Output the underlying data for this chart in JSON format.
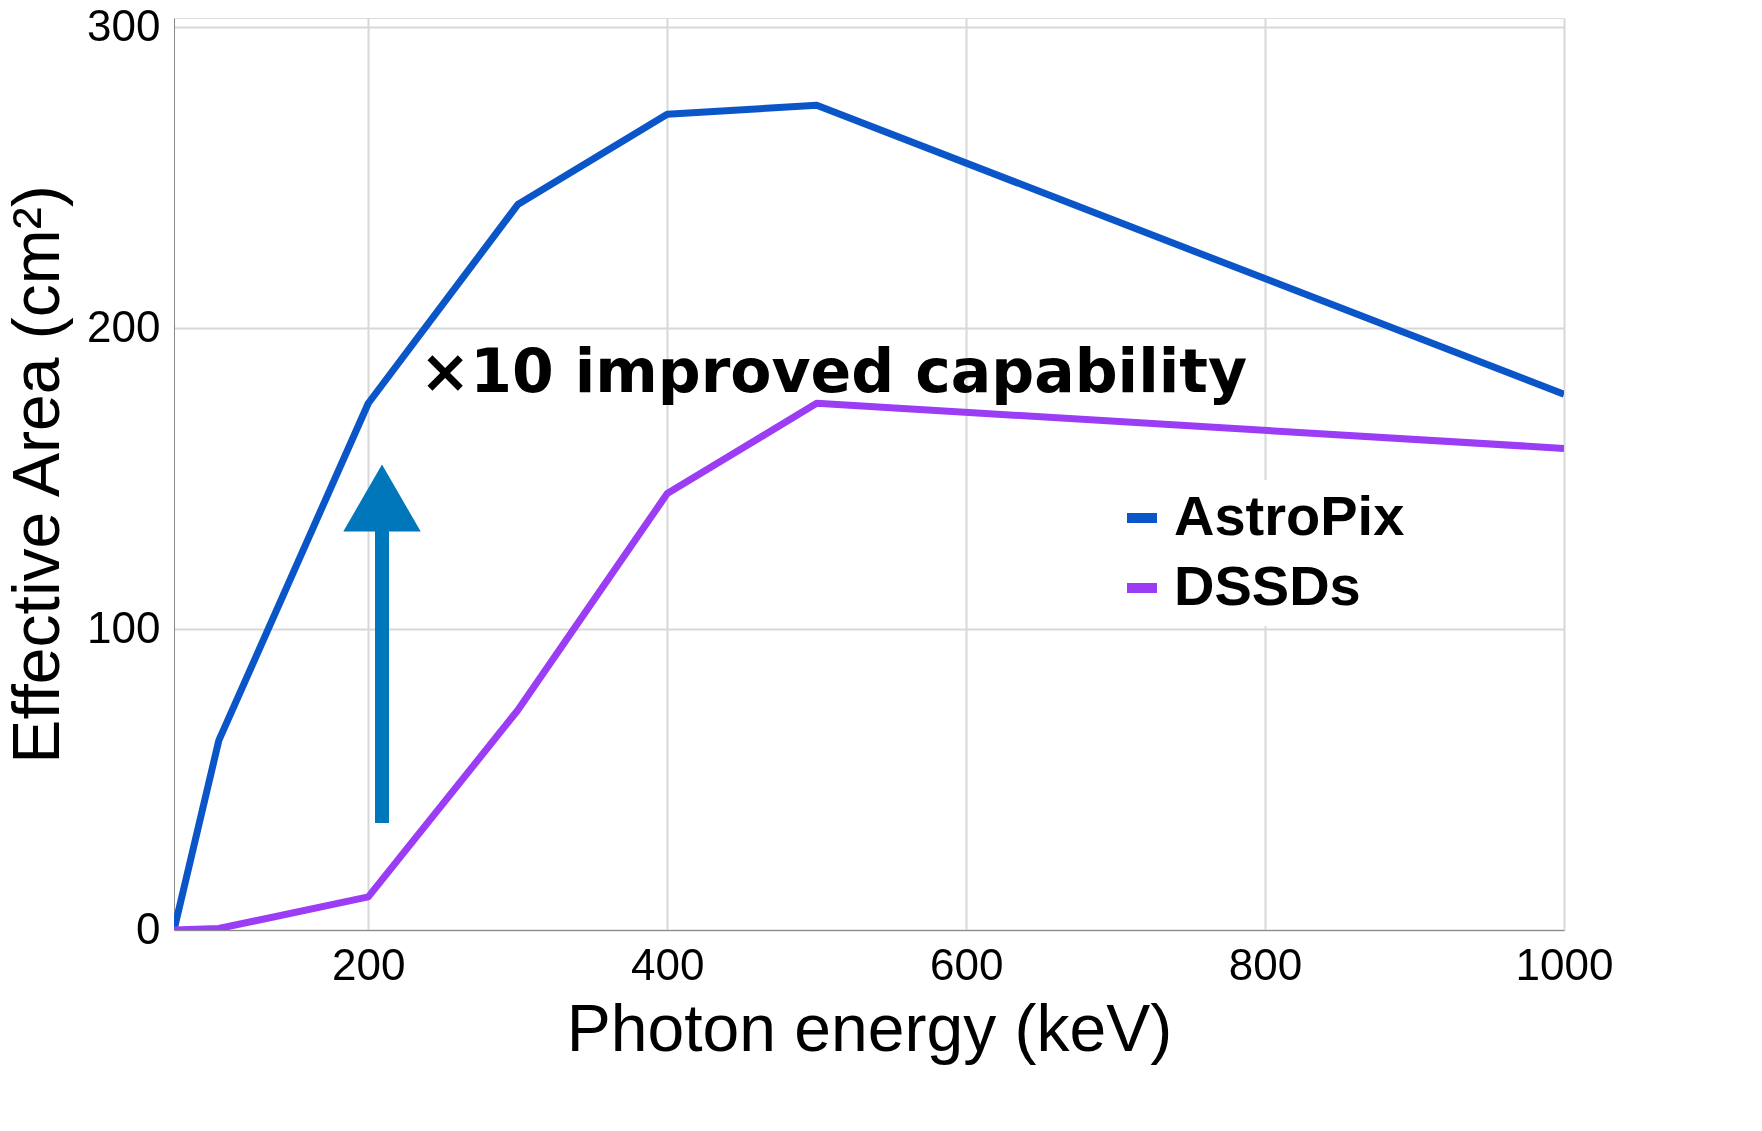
{
  "chart_data": {
    "type": "line",
    "xlabel": "Photon energy (keV)",
    "ylabel": "Effective Area (cm²)",
    "xlim": [
      70,
      1000
    ],
    "ylim": [
      0,
      303
    ],
    "xticks": [
      200,
      400,
      600,
      800,
      1000
    ],
    "yticks": [
      0,
      100,
      200,
      300
    ],
    "grid": true,
    "legend": "right",
    "line_style": "solid",
    "annotations": [
      "×10 improved capability"
    ],
    "series": [
      {
        "name": "AstroPix",
        "color": "#0a55c8",
        "x": [
          70,
          100,
          200,
          300,
          400,
          500,
          1000
        ],
        "values": [
          0,
          63,
          175,
          241,
          271,
          274,
          178
        ]
      },
      {
        "name": "DSSDs",
        "color": "#9b3df5",
        "x": [
          70,
          100,
          200,
          300,
          400,
          500,
          1000
        ],
        "values": [
          0,
          0.5,
          11,
          73,
          145,
          175,
          160
        ]
      }
    ]
  }
}
